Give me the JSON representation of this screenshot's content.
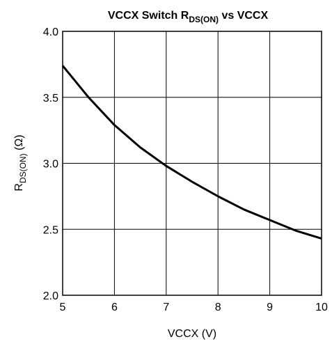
{
  "chart_data": {
    "type": "line",
    "title": {
      "main": "VCCX Switch R",
      "sub": "DS(ON)",
      "tail": " vs VCCX"
    },
    "x_label": "VCCX (V)",
    "y_label": {
      "main": "R",
      "sub": "DS(ON)",
      "tail": " (Ω)"
    },
    "x": [
      5,
      5.5,
      6,
      6.5,
      7,
      7.5,
      8,
      8.5,
      9,
      9.5,
      10
    ],
    "series": [
      {
        "name": "RDS(ON)",
        "color": "#000000",
        "values": [
          3.74,
          3.5,
          3.29,
          3.12,
          2.98,
          2.86,
          2.75,
          2.65,
          2.57,
          2.49,
          2.43
        ]
      }
    ],
    "xlim": [
      5,
      10
    ],
    "xticks": [
      5,
      6,
      7,
      8,
      9,
      10
    ],
    "ylim": [
      2.0,
      4.0
    ],
    "yticks": [
      {
        "value": 2.0,
        "label": "2.0"
      },
      {
        "value": 2.5,
        "label": "2.5"
      },
      {
        "value": 3.0,
        "label": "3.0"
      },
      {
        "value": 3.5,
        "label": "3.5"
      },
      {
        "value": 4.0,
        "label": "4.0"
      }
    ],
    "grid": true
  }
}
